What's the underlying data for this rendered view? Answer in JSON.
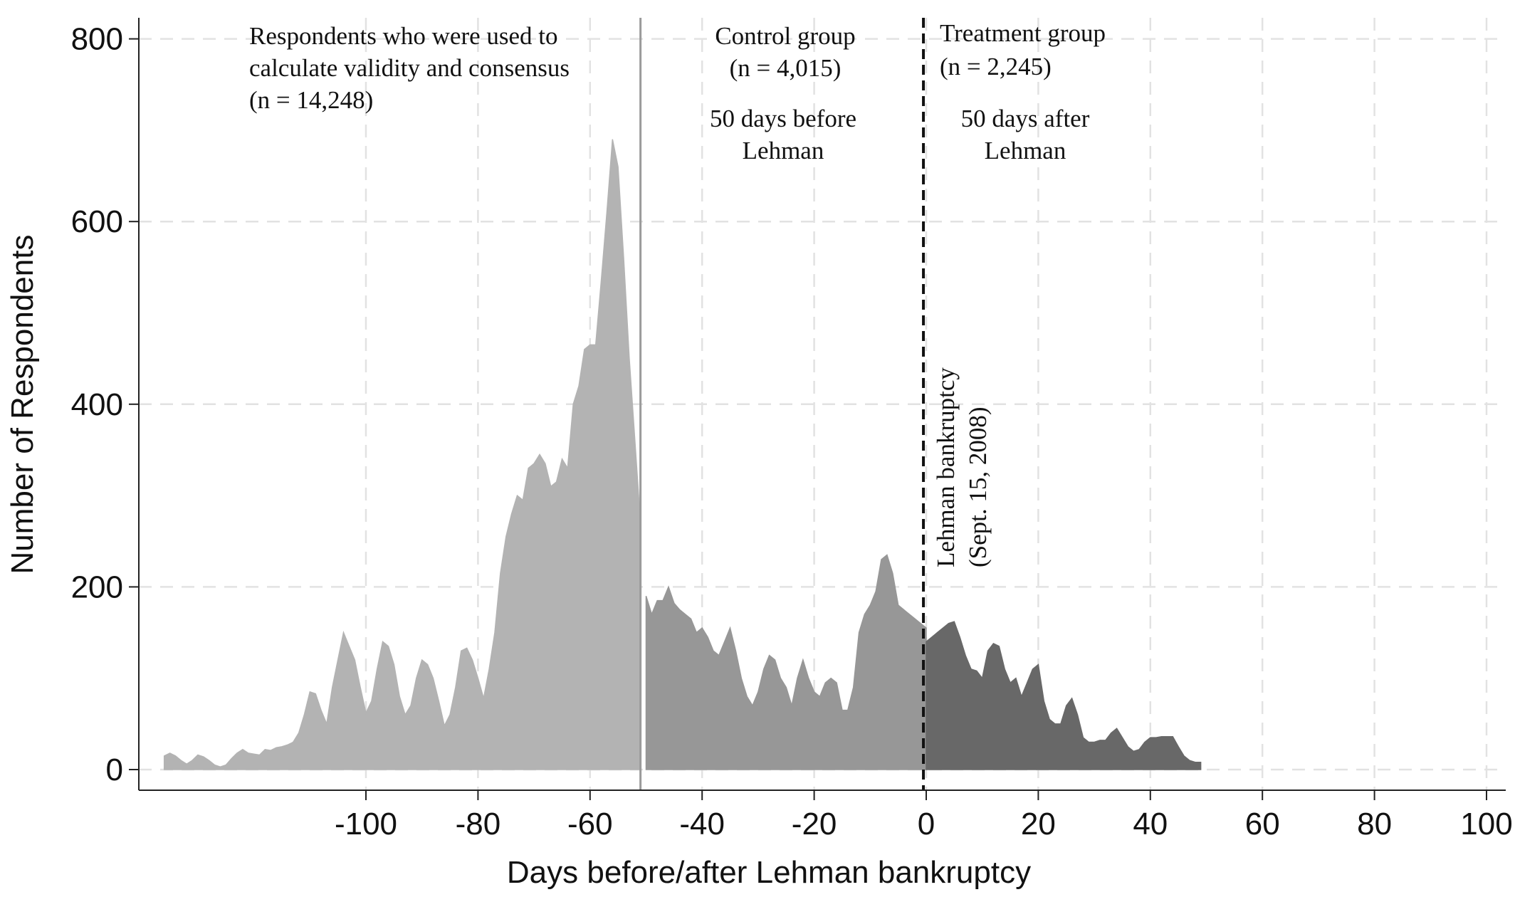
{
  "chart_data": {
    "type": "area",
    "xlabel": "Days before/after Lehman bankruptcy",
    "ylabel": "Number of Respondents",
    "xlim": [
      -136,
      104
    ],
    "ylim": [
      0,
      800
    ],
    "xticks": [
      -100,
      -80,
      -60,
      -40,
      -20,
      0,
      20,
      40,
      60,
      80,
      100
    ],
    "yticks": [
      0,
      200,
      400,
      600,
      800
    ],
    "grid": true,
    "series": [
      {
        "color": "#b3b3b3",
        "x": [
          -136,
          -135,
          -134,
          -133,
          -132,
          -131,
          -130,
          -129,
          -128,
          -127,
          -126,
          -125,
          -124,
          -123,
          -122,
          -121,
          -120,
          -119,
          -118,
          -117,
          -116,
          -115,
          -114,
          -113,
          -112,
          -111,
          -110,
          -109,
          -108,
          -107,
          -106,
          -105,
          -104,
          -103,
          -102,
          -101,
          -100,
          -99,
          -98,
          -97,
          -96,
          -95,
          -94,
          -93,
          -92,
          -91,
          -90,
          -89,
          -88,
          -87,
          -86,
          -85,
          -84,
          -83,
          -82,
          -81,
          -80,
          -79,
          -78,
          -77,
          -76,
          -75,
          -74,
          -73,
          -72,
          -71,
          -70,
          -69,
          -68,
          -67,
          -66,
          -65,
          -64,
          -63,
          -62,
          -61,
          -60,
          -59,
          -58,
          -57,
          -56,
          -55,
          -54,
          -53,
          -52,
          -51
        ],
        "y": [
          15,
          18,
          15,
          10,
          6,
          10,
          16,
          14,
          10,
          5,
          3,
          5,
          12,
          18,
          22,
          18,
          17,
          16,
          22,
          21,
          24,
          25,
          27,
          30,
          40,
          60,
          85,
          83,
          65,
          50,
          90,
          120,
          150,
          135,
          120,
          90,
          62,
          75,
          110,
          140,
          135,
          115,
          80,
          60,
          70,
          100,
          120,
          115,
          100,
          75,
          48,
          60,
          90,
          130,
          133,
          120,
          100,
          78,
          110,
          150,
          215,
          255,
          280,
          300,
          295,
          330,
          335,
          345,
          335,
          310,
          315,
          340,
          330,
          400,
          420,
          460,
          465,
          465,
          535,
          610,
          690,
          660,
          560,
          450,
          360,
          270
        ]
      },
      {
        "color": "#979797",
        "x": [
          -50,
          -49,
          -48,
          -47,
          -46,
          -45,
          -44,
          -43,
          -42,
          -41,
          -40,
          -39,
          -38,
          -37,
          -36,
          -35,
          -34,
          -33,
          -32,
          -31,
          -30,
          -29,
          -28,
          -27,
          -26,
          -25,
          -24,
          -23,
          -22,
          -21,
          -20,
          -19,
          -18,
          -17,
          -16,
          -15,
          -14,
          -13,
          -12,
          -11,
          -10,
          -9,
          -8,
          -7,
          -6,
          -5,
          -4,
          -3,
          -2,
          -1,
          0
        ],
        "y": [
          190,
          170,
          185,
          185,
          200,
          182,
          175,
          170,
          165,
          150,
          155,
          145,
          130,
          125,
          140,
          155,
          130,
          100,
          80,
          70,
          85,
          110,
          125,
          120,
          100,
          90,
          70,
          100,
          120,
          100,
          85,
          80,
          95,
          100,
          95,
          65,
          65,
          90,
          150,
          170,
          180,
          195,
          230,
          235,
          215,
          180,
          175,
          170,
          165,
          160,
          155
        ]
      },
      {
        "color": "#686868",
        "x": [
          0,
          1,
          2,
          3,
          4,
          5,
          6,
          7,
          8,
          9,
          10,
          11,
          12,
          13,
          14,
          15,
          16,
          17,
          18,
          19,
          20,
          21,
          22,
          23,
          24,
          25,
          26,
          27,
          28,
          29,
          30,
          31,
          32,
          33,
          34,
          35,
          36,
          37,
          38,
          39,
          40,
          41,
          42,
          43,
          44,
          45,
          46,
          47,
          48,
          49
        ],
        "y": [
          140,
          145,
          150,
          155,
          160,
          162,
          145,
          125,
          110,
          108,
          100,
          130,
          138,
          135,
          110,
          95,
          100,
          80,
          95,
          110,
          115,
          75,
          55,
          50,
          50,
          70,
          78,
          60,
          35,
          30,
          30,
          32,
          32,
          40,
          45,
          35,
          25,
          20,
          22,
          30,
          35,
          35,
          36,
          36,
          36,
          25,
          15,
          10,
          8,
          8
        ]
      }
    ],
    "reference_lines": [
      {
        "x": -51,
        "style": "solid"
      },
      {
        "x": -0.5,
        "style": "dashed"
      }
    ],
    "annotations": [
      {
        "lines": [
          "Respondents who were used to",
          "calculate validity and consensus",
          "(n = 14,248)"
        ]
      },
      {
        "lines": [
          "Control group",
          "(n = 4,015)"
        ]
      },
      {
        "lines": [
          "50 days before",
          "Lehman"
        ]
      },
      {
        "lines": [
          "Treatment group",
          "(n = 2,245)"
        ]
      },
      {
        "lines": [
          "50 days after",
          "Lehman"
        ]
      },
      {
        "lines": [
          "Lehman bankruptcy",
          "(Sept. 15, 2008)"
        ]
      }
    ]
  }
}
